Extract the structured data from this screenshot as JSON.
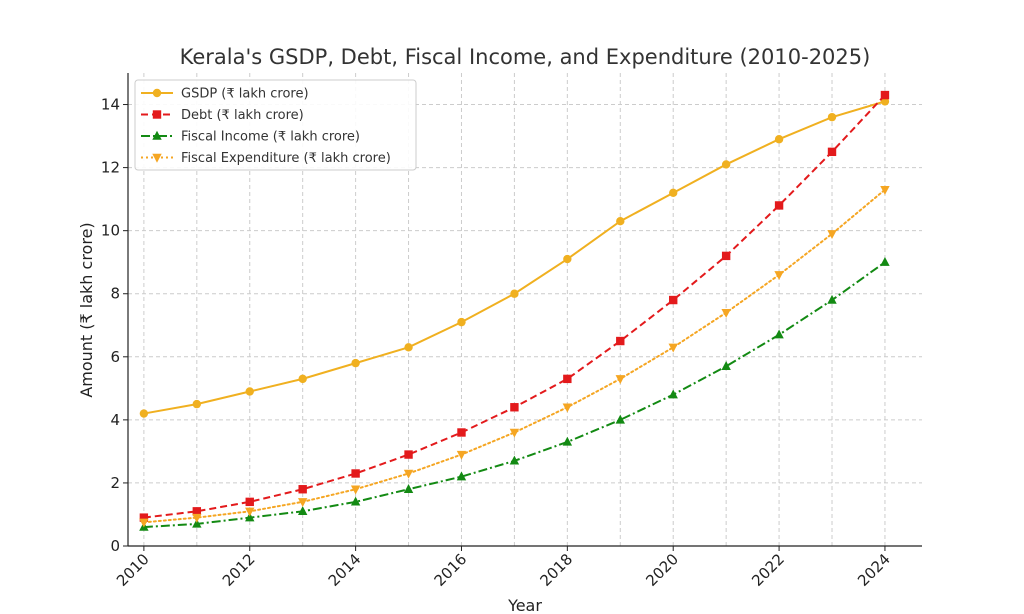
{
  "chart_data": {
    "type": "line",
    "title": "Kerala's GSDP, Debt, Fiscal Income, and Expenditure (2010-2025)",
    "xlabel": "Year",
    "ylabel": "Amount (₹ lakh crore)",
    "xlim": [
      2009.7,
      2024.7
    ],
    "ylim": [
      0,
      15
    ],
    "xticks": [
      2010,
      2012,
      2014,
      2016,
      2018,
      2020,
      2022,
      2024
    ],
    "yticks": [
      0,
      2,
      4,
      6,
      8,
      10,
      12,
      14
    ],
    "grid": true,
    "legend_position": "top-left",
    "x": [
      2010,
      2011,
      2012,
      2013,
      2014,
      2015,
      2016,
      2017,
      2018,
      2019,
      2020,
      2021,
      2022,
      2023,
      2024
    ],
    "series": [
      {
        "name": "GSDP (₹ lakh crore)",
        "color": "#f0b020",
        "marker": "circle",
        "dash": "solid",
        "values": [
          4.2,
          4.5,
          4.9,
          5.3,
          5.8,
          6.3,
          7.1,
          8.0,
          9.1,
          10.3,
          11.2,
          12.1,
          12.9,
          13.6,
          14.1
        ]
      },
      {
        "name": "Debt (₹ lakh crore)",
        "color": "#e31a1c",
        "marker": "square",
        "dash": "dashed",
        "values": [
          0.9,
          1.1,
          1.4,
          1.8,
          2.3,
          2.9,
          3.6,
          4.4,
          5.3,
          6.5,
          7.8,
          9.2,
          10.8,
          12.5,
          14.3
        ]
      },
      {
        "name": "Fiscal Income (₹ lakh crore)",
        "color": "#138a13",
        "marker": "triangle-up",
        "dash": "dashdot",
        "values": [
          0.6,
          0.7,
          0.9,
          1.1,
          1.4,
          1.8,
          2.2,
          2.7,
          3.3,
          4.0,
          4.8,
          5.7,
          6.7,
          7.8,
          9.0
        ]
      },
      {
        "name": "Fiscal Expenditure (₹ lakh crore)",
        "color": "#f5a623",
        "marker": "triangle-down",
        "dash": "dotted",
        "values": [
          0.75,
          0.9,
          1.1,
          1.4,
          1.8,
          2.3,
          2.9,
          3.6,
          4.4,
          5.3,
          6.3,
          7.4,
          8.6,
          9.9,
          11.3
        ]
      }
    ]
  }
}
